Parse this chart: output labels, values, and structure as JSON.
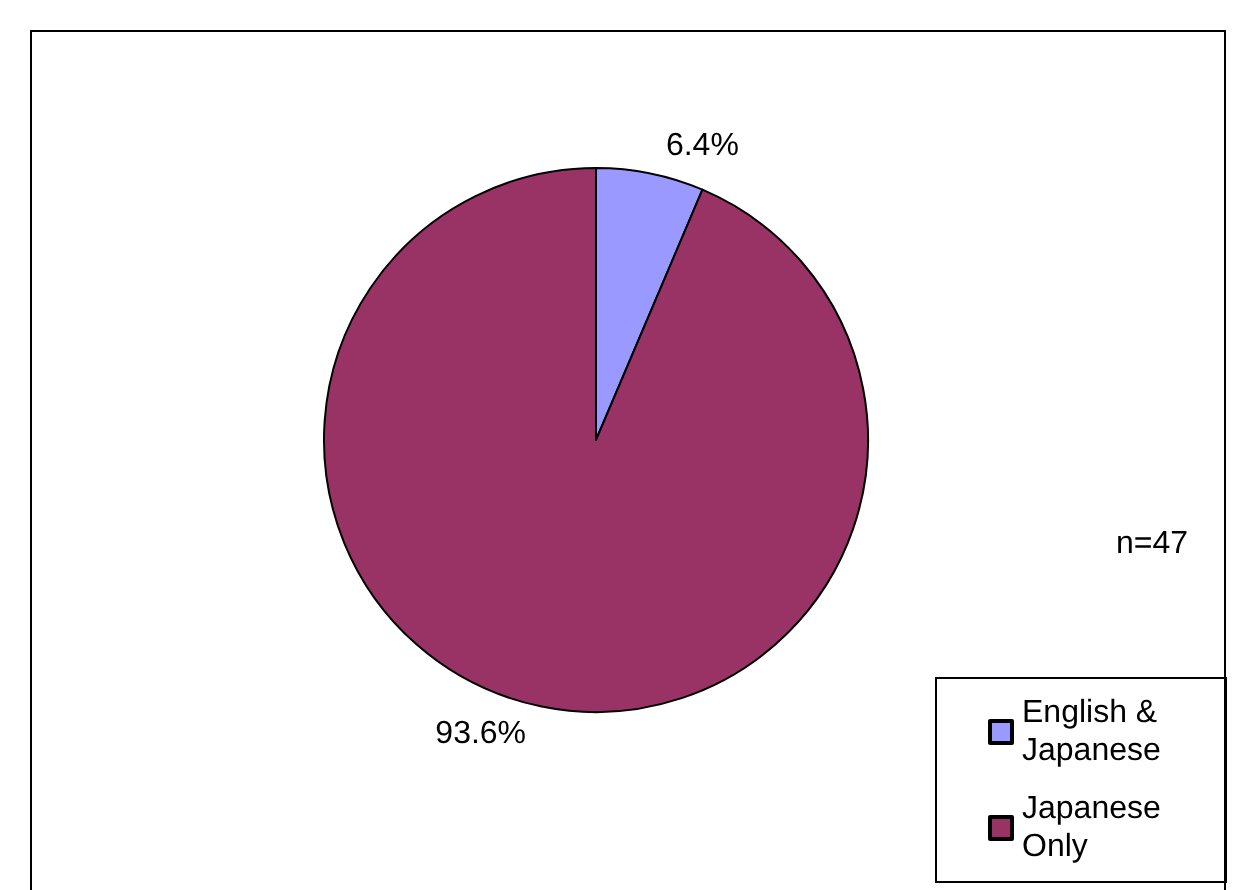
{
  "chart_data": {
    "type": "pie",
    "categories": [
      "English & Japanese",
      "Japanese Only"
    ],
    "values": [
      6.4,
      93.6
    ],
    "colors": [
      "#9999ff",
      "#993366"
    ],
    "value_labels": [
      "6.4%",
      "93.6%"
    ],
    "legend": "bottom right",
    "annotations": [
      "n=47"
    ]
  }
}
